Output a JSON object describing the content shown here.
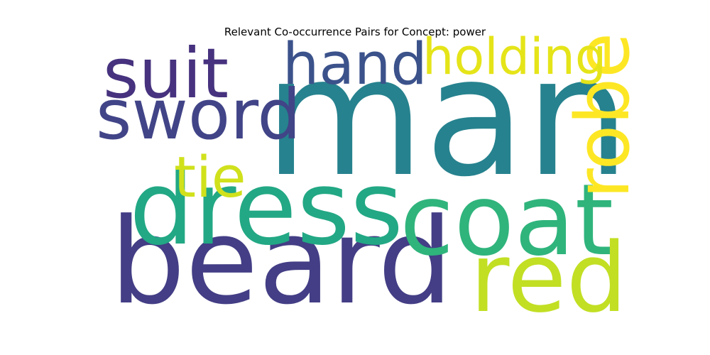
{
  "chart_data": {
    "type": "wordcloud",
    "title": "Relevant Co-occurrence Pairs for Concept: power",
    "words": [
      {
        "text": "man",
        "weight": 1.0,
        "color": "#26828e"
      },
      {
        "text": "beard",
        "weight": 0.72,
        "color": "#433e85"
      },
      {
        "text": "dress",
        "weight": 0.62,
        "color": "#22a884"
      },
      {
        "text": "coat",
        "weight": 0.6,
        "color": "#2fb47c"
      },
      {
        "text": "red",
        "weight": 0.58,
        "color": "#c2df23"
      },
      {
        "text": "robe",
        "weight": 0.45,
        "color": "#fde725"
      },
      {
        "text": "sword",
        "weight": 0.42,
        "color": "#414487"
      },
      {
        "text": "suit",
        "weight": 0.42,
        "color": "#46327e"
      },
      {
        "text": "hand",
        "weight": 0.35,
        "color": "#3b528b"
      },
      {
        "text": "tie",
        "weight": 0.34,
        "color": "#d0e11c"
      },
      {
        "text": "holding",
        "weight": 0.3,
        "color": "#e5e419"
      }
    ]
  }
}
